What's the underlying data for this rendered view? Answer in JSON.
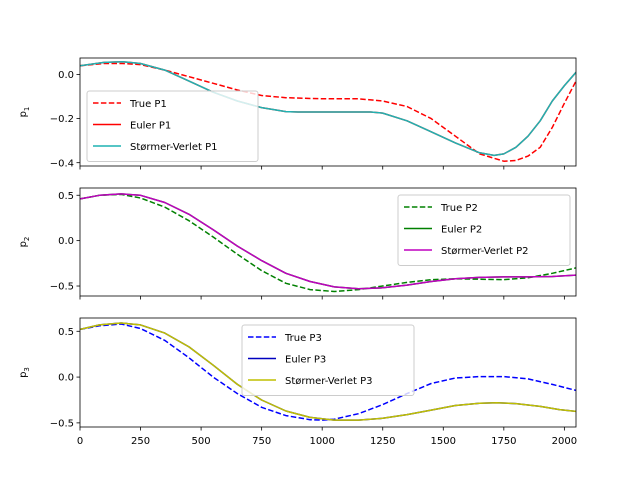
{
  "chart_data": [
    {
      "type": "line",
      "ylabel_base": "p",
      "ylabel_sub": "1",
      "xlim": [
        0,
        2048
      ],
      "ylim": [
        -0.415,
        0.075
      ],
      "yticks": [
        0.0,
        -0.2,
        -0.4
      ],
      "ytick_labels": [
        "0.0",
        "−0.2",
        "−0.4"
      ],
      "xticks": [
        0,
        250,
        500,
        750,
        1000,
        1250,
        1500,
        1750,
        2000
      ],
      "xtick_labels": [],
      "legend_placement": "center-left",
      "series": [
        {
          "name": "True P1",
          "color": "#ff0000",
          "dashed": true,
          "x": [
            0,
            100,
            175,
            250,
            350,
            450,
            550,
            650,
            750,
            850,
            1000,
            1150,
            1250,
            1350,
            1450,
            1550,
            1650,
            1750,
            1800,
            1850,
            1900,
            1950,
            2000,
            2048
          ],
          "y": [
            0.04,
            0.05,
            0.05,
            0.045,
            0.02,
            -0.01,
            -0.04,
            -0.07,
            -0.095,
            -0.105,
            -0.11,
            -0.11,
            -0.12,
            -0.145,
            -0.2,
            -0.28,
            -0.36,
            -0.393,
            -0.39,
            -0.37,
            -0.33,
            -0.24,
            -0.13,
            -0.03
          ]
        },
        {
          "name": "Euler P1",
          "color": "#ff0000",
          "dashed": false,
          "x": [
            0,
            100,
            175,
            250,
            350,
            450,
            550,
            650,
            750,
            850,
            900,
            1000,
            1100,
            1200,
            1250,
            1350,
            1450,
            1550,
            1650,
            1710,
            1750,
            1800,
            1850,
            1900,
            1950,
            2000,
            2048
          ],
          "y": [
            0.04,
            0.055,
            0.058,
            0.05,
            0.02,
            -0.03,
            -0.08,
            -0.12,
            -0.15,
            -0.168,
            -0.17,
            -0.17,
            -0.17,
            -0.17,
            -0.175,
            -0.21,
            -0.26,
            -0.31,
            -0.355,
            -0.367,
            -0.36,
            -0.33,
            -0.28,
            -0.21,
            -0.12,
            -0.05,
            0.01
          ]
        },
        {
          "name": "Størmer-Verlet P1",
          "color": "#1fb2b2",
          "dashed": false,
          "x": [
            0,
            100,
            175,
            250,
            350,
            450,
            550,
            650,
            750,
            850,
            900,
            1000,
            1100,
            1200,
            1250,
            1350,
            1450,
            1550,
            1650,
            1710,
            1750,
            1800,
            1850,
            1900,
            1950,
            2000,
            2048
          ],
          "y": [
            0.04,
            0.055,
            0.058,
            0.05,
            0.02,
            -0.03,
            -0.08,
            -0.12,
            -0.15,
            -0.168,
            -0.17,
            -0.17,
            -0.17,
            -0.17,
            -0.175,
            -0.21,
            -0.26,
            -0.31,
            -0.355,
            -0.367,
            -0.36,
            -0.33,
            -0.28,
            -0.21,
            -0.12,
            -0.05,
            0.01
          ]
        }
      ]
    },
    {
      "type": "line",
      "ylabel_base": "p",
      "ylabel_sub": "2",
      "xlim": [
        0,
        2048
      ],
      "ylim": [
        -0.61,
        0.58
      ],
      "yticks": [
        0.5,
        0.0,
        -0.5
      ],
      "ytick_labels": [
        "0.5",
        "0.0",
        "−0.5"
      ],
      "xticks": [
        0,
        250,
        500,
        750,
        1000,
        1250,
        1500,
        1750,
        2000
      ],
      "xtick_labels": [],
      "legend_placement": "center-right",
      "series": [
        {
          "name": "True P2",
          "color": "#008000",
          "dashed": true,
          "x": [
            0,
            80,
            170,
            250,
            350,
            450,
            550,
            650,
            750,
            850,
            950,
            1050,
            1150,
            1250,
            1350,
            1450,
            1550,
            1650,
            1750,
            1850,
            1950,
            2048
          ],
          "y": [
            0.46,
            0.5,
            0.51,
            0.47,
            0.37,
            0.22,
            0.04,
            -0.15,
            -0.33,
            -0.47,
            -0.54,
            -0.56,
            -0.54,
            -0.5,
            -0.46,
            -0.43,
            -0.42,
            -0.425,
            -0.43,
            -0.41,
            -0.36,
            -0.3
          ]
        },
        {
          "name": "Euler P2",
          "color": "#008000",
          "dashed": false,
          "x": [
            0,
            80,
            170,
            250,
            350,
            450,
            550,
            650,
            750,
            850,
            950,
            1050,
            1150,
            1250,
            1350,
            1450,
            1550,
            1650,
            1750,
            1850,
            1950,
            2048
          ],
          "y": [
            0.46,
            0.5,
            0.515,
            0.5,
            0.42,
            0.29,
            0.12,
            -0.06,
            -0.22,
            -0.36,
            -0.45,
            -0.51,
            -0.53,
            -0.52,
            -0.49,
            -0.45,
            -0.42,
            -0.405,
            -0.4,
            -0.4,
            -0.395,
            -0.38
          ]
        },
        {
          "name": "Størmer-Verlet P2",
          "color": "#bf00bf",
          "dashed": false,
          "x": [
            0,
            80,
            170,
            250,
            350,
            450,
            550,
            650,
            750,
            850,
            950,
            1050,
            1150,
            1250,
            1350,
            1450,
            1550,
            1650,
            1750,
            1850,
            1950,
            2048
          ],
          "y": [
            0.46,
            0.5,
            0.515,
            0.5,
            0.42,
            0.29,
            0.12,
            -0.06,
            -0.22,
            -0.36,
            -0.45,
            -0.51,
            -0.53,
            -0.52,
            -0.49,
            -0.45,
            -0.42,
            -0.405,
            -0.4,
            -0.4,
            -0.395,
            -0.38
          ]
        }
      ]
    },
    {
      "type": "line",
      "ylabel_base": "p",
      "ylabel_sub": "3",
      "xlim": [
        0,
        2048
      ],
      "ylim": [
        -0.545,
        0.645
      ],
      "yticks": [
        0.5,
        0.0,
        -0.5
      ],
      "ytick_labels": [
        "0.5",
        "0.0",
        "−0.5"
      ],
      "xticks": [
        0,
        250,
        500,
        750,
        1000,
        1250,
        1500,
        1750,
        2000
      ],
      "xtick_labels": [
        "0",
        "250",
        "500",
        "750",
        "1000",
        "1250",
        "1500",
        "1750",
        "2000"
      ],
      "legend_placement": "center",
      "series": [
        {
          "name": "True P3",
          "color": "#0000ff",
          "dashed": true,
          "x": [
            0,
            80,
            170,
            250,
            350,
            450,
            550,
            650,
            750,
            850,
            950,
            1000,
            1050,
            1150,
            1250,
            1350,
            1450,
            1550,
            1650,
            1750,
            1850,
            1950,
            2048
          ],
          "y": [
            0.52,
            0.56,
            0.58,
            0.53,
            0.4,
            0.21,
            0.0,
            -0.18,
            -0.33,
            -0.42,
            -0.465,
            -0.47,
            -0.46,
            -0.4,
            -0.3,
            -0.18,
            -0.07,
            -0.01,
            0.005,
            0.005,
            -0.02,
            -0.08,
            -0.145
          ]
        },
        {
          "name": "Euler P3",
          "color": "#0000bf",
          "dashed": false,
          "x": [
            0,
            80,
            170,
            250,
            350,
            450,
            550,
            650,
            750,
            850,
            950,
            1050,
            1150,
            1250,
            1350,
            1450,
            1550,
            1650,
            1720,
            1800,
            1900,
            1980,
            2048
          ],
          "y": [
            0.52,
            0.57,
            0.59,
            0.57,
            0.48,
            0.33,
            0.13,
            -0.08,
            -0.25,
            -0.37,
            -0.44,
            -0.47,
            -0.47,
            -0.45,
            -0.41,
            -0.36,
            -0.31,
            -0.285,
            -0.28,
            -0.29,
            -0.32,
            -0.355,
            -0.375
          ]
        },
        {
          "name": "Størmer-Verlet P3",
          "color": "#bfbf00",
          "dashed": false,
          "x": [
            0,
            80,
            170,
            250,
            350,
            450,
            550,
            650,
            750,
            850,
            950,
            1050,
            1150,
            1250,
            1350,
            1450,
            1550,
            1650,
            1720,
            1800,
            1900,
            1980,
            2048
          ],
          "y": [
            0.52,
            0.57,
            0.59,
            0.57,
            0.48,
            0.33,
            0.13,
            -0.08,
            -0.25,
            -0.37,
            -0.44,
            -0.47,
            -0.47,
            -0.45,
            -0.41,
            -0.36,
            -0.31,
            -0.285,
            -0.28,
            -0.29,
            -0.32,
            -0.355,
            -0.375
          ]
        }
      ]
    }
  ]
}
